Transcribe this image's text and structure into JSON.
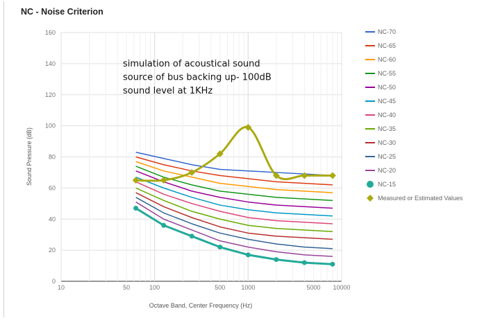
{
  "chart_data": {
    "type": "line",
    "title": "NC - Noise Criterion",
    "xlabel": "Octave Band, Center Frequency (Hz)",
    "ylabel": "Sound Pressure (dB)",
    "x_scale": "log",
    "xlim": [
      10,
      10000
    ],
    "ylim": [
      0,
      160
    ],
    "x_ticks": [
      10,
      50,
      100,
      500,
      1000,
      5000,
      10000
    ],
    "x_tick_labels": [
      "10",
      "50",
      "100",
      "500",
      "1000",
      "5000",
      "10000"
    ],
    "y_ticks": [
      0,
      20,
      40,
      60,
      80,
      100,
      120,
      140,
      160
    ],
    "grid": true,
    "legend_position": "right",
    "annotation": [
      "simulation of acoustical sound",
      "source of bus backing up- 100dB",
      "sound level at 1KHz"
    ],
    "x": [
      63,
      125,
      250,
      500,
      1000,
      2000,
      4000,
      8000
    ],
    "series": [
      {
        "name": "NC-70",
        "color": "#3366cc",
        "values": [
          83,
          79,
          75,
          72,
          71,
          70,
          69,
          68
        ]
      },
      {
        "name": "NC-65",
        "color": "#dc3912",
        "values": [
          80,
          75,
          71,
          68,
          66,
          64,
          63,
          62
        ]
      },
      {
        "name": "NC-60",
        "color": "#ff9900",
        "values": [
          77,
          71,
          67,
          63,
          61,
          59,
          58,
          57
        ]
      },
      {
        "name": "NC-55",
        "color": "#109618",
        "values": [
          74,
          67,
          62,
          58,
          56,
          54,
          53,
          52
        ]
      },
      {
        "name": "NC-50",
        "color": "#990099",
        "values": [
          71,
          64,
          58,
          54,
          51,
          49,
          48,
          47
        ]
      },
      {
        "name": "NC-45",
        "color": "#0099c6",
        "values": [
          67,
          60,
          54,
          49,
          46,
          44,
          43,
          42
        ]
      },
      {
        "name": "NC-40",
        "color": "#dd4477",
        "values": [
          64,
          56,
          50,
          45,
          41,
          39,
          38,
          37
        ]
      },
      {
        "name": "NC-35",
        "color": "#66aa00",
        "values": [
          60,
          52,
          45,
          40,
          36,
          34,
          33,
          32
        ]
      },
      {
        "name": "NC-30",
        "color": "#b82e2e",
        "values": [
          57,
          48,
          41,
          35,
          31,
          29,
          28,
          27
        ]
      },
      {
        "name": "NC-25",
        "color": "#316395",
        "values": [
          54,
          44,
          37,
          31,
          27,
          24,
          22,
          21
        ]
      },
      {
        "name": "NC-20",
        "color": "#994499",
        "values": [
          51,
          40,
          33,
          26,
          22,
          19,
          17,
          16
        ]
      },
      {
        "name": "NC-15",
        "color": "#22aa99",
        "values": [
          47,
          36,
          29,
          22,
          17,
          14,
          12,
          11
        ]
      },
      {
        "name": "Measured or Estimated Values",
        "color": "#aaaa11",
        "values": [
          65,
          65,
          70,
          82,
          99,
          68,
          68,
          68
        ]
      }
    ]
  }
}
